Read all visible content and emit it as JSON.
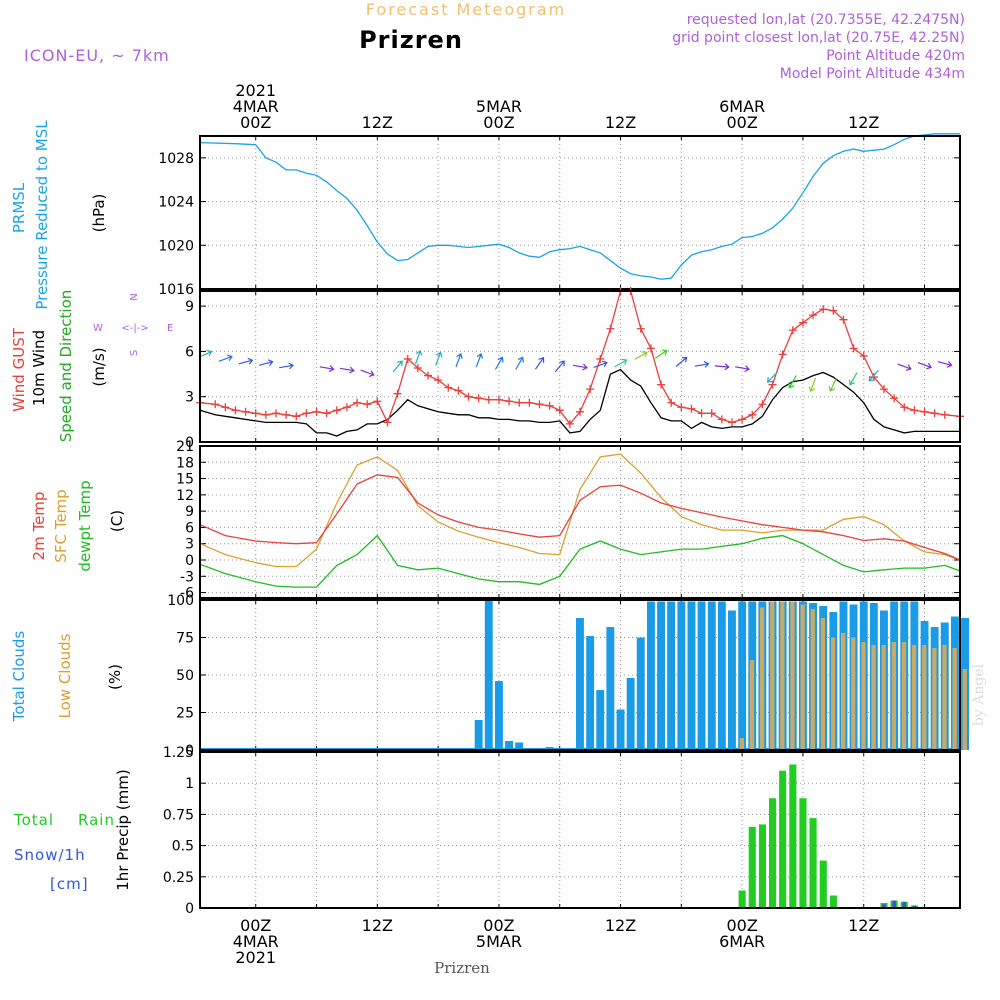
{
  "header": {
    "title": "Prizren",
    "subtitle": "Forecast Meteogram",
    "model": "ICON-EU, ~ 7km",
    "info_lines": [
      "requested lon,lat (20.7355E, 42.2475N)",
      "grid point closest lon,lat (20.75E, 42.25N)",
      "Point Altitude 420m",
      "Model Point Altitude 434m"
    ],
    "bottom_label": "Prizren",
    "watermark": "by Angel"
  },
  "colors": {
    "pressure": "#1aa3e8",
    "gust": "#e8403a",
    "wind": "#000000",
    "temp2m": "#e8403a",
    "sfc_temp": "#d9a030",
    "dewpoint": "#22bb22",
    "total_clouds": "#1a9be8",
    "low_clouds": "#c8aa66",
    "rain": "#22cc22",
    "snow": "#3355dd",
    "title_purple": "#b05fd8"
  },
  "time_axis": {
    "top_labels": [
      {
        "h": 0,
        "lines": [
          "2021",
          "4MAR",
          "00Z"
        ]
      },
      {
        "h": 12,
        "lines": [
          "12Z"
        ]
      },
      {
        "h": 24,
        "lines": [
          "5MAR",
          "00Z"
        ]
      },
      {
        "h": 36,
        "lines": [
          "12Z"
        ]
      },
      {
        "h": 48,
        "lines": [
          "6MAR",
          "00Z"
        ]
      },
      {
        "h": 60,
        "lines": [
          "12Z"
        ]
      }
    ],
    "bottom_labels": [
      {
        "h": 0,
        "lines": [
          "00Z",
          "4MAR",
          "2021"
        ]
      },
      {
        "h": 12,
        "lines": [
          "12Z"
        ]
      },
      {
        "h": 24,
        "lines": [
          "00Z",
          "5MAR"
        ]
      },
      {
        "h": 36,
        "lines": [
          "12Z"
        ]
      },
      {
        "h": 48,
        "lines": [
          "00Z",
          "6MAR"
        ]
      },
      {
        "h": 60,
        "lines": [
          "12Z"
        ]
      }
    ]
  },
  "chart_data": [
    {
      "type": "line",
      "name": "pressure",
      "labels": [
        "PRMSL",
        "Pressure Reduced to MSL",
        "(hPa)"
      ],
      "ylim": [
        1016,
        1030
      ],
      "yticks": [
        1016,
        1020,
        1024,
        1028
      ],
      "x_hours": [
        -5.5,
        -2,
        0,
        1,
        2,
        3,
        4,
        5,
        6,
        7,
        8,
        9,
        10,
        11,
        12,
        13,
        14,
        15,
        16,
        17,
        18,
        19,
        20,
        21,
        22,
        23,
        24,
        25,
        26,
        27,
        28,
        29,
        30,
        31,
        32,
        33,
        34,
        35,
        36,
        37,
        38,
        39,
        40,
        41,
        42,
        43,
        44,
        45,
        46,
        47,
        48,
        49,
        50,
        51,
        52,
        53,
        54,
        55,
        56,
        57,
        58,
        59,
        60,
        61,
        62,
        63,
        64,
        65,
        66,
        67,
        69.5
      ],
      "y": [
        1029.4,
        1029.3,
        1029.2,
        1028.0,
        1027.6,
        1026.9,
        1026.9,
        1026.6,
        1026.4,
        1025.8,
        1025.0,
        1024.3,
        1023.2,
        1021.8,
        1020.3,
        1019.2,
        1018.6,
        1018.7,
        1019.3,
        1019.9,
        1020.0,
        1020.0,
        1019.9,
        1019.8,
        1019.9,
        1020.0,
        1020.1,
        1019.8,
        1019.3,
        1019.0,
        1018.9,
        1019.4,
        1019.6,
        1019.7,
        1019.9,
        1019.6,
        1019.3,
        1018.6,
        1017.9,
        1017.4,
        1017.2,
        1017.1,
        1016.9,
        1017.0,
        1018.2,
        1019.1,
        1019.4,
        1019.6,
        1019.9,
        1020.1,
        1020.7,
        1020.8,
        1021.1,
        1021.6,
        1022.4,
        1023.4,
        1024.8,
        1026.3,
        1027.5,
        1028.2,
        1028.6,
        1028.8,
        1028.6,
        1028.7,
        1028.8,
        1029.2,
        1029.7,
        1030.0,
        1030.1,
        1030.2,
        1030.2
      ]
    },
    {
      "type": "line",
      "name": "wind",
      "labels": [
        "Wind GUST",
        "10m Wind",
        "Speed and Direction",
        "(m/s)"
      ],
      "compass": [
        "N",
        "W",
        "E",
        "S"
      ],
      "ylim": [
        0,
        10
      ],
      "yticks": [
        0,
        3,
        6,
        9
      ],
      "x_hours": [
        -5.5,
        -4,
        -3,
        -2,
        -1,
        0,
        1,
        2,
        3,
        4,
        5,
        6,
        7,
        8,
        9,
        10,
        11,
        12,
        13,
        14,
        15,
        16,
        17,
        18,
        19,
        20,
        21,
        22,
        23,
        24,
        25,
        26,
        27,
        28,
        29,
        30,
        31,
        32,
        33,
        34,
        35,
        36,
        37,
        38,
        39,
        40,
        41,
        42,
        43,
        44,
        45,
        46,
        47,
        48,
        49,
        50,
        51,
        52,
        53,
        54,
        55,
        56,
        57,
        58,
        59,
        60,
        61,
        62,
        63,
        64,
        65,
        66,
        67,
        68,
        69.5
      ],
      "gust": [
        2.6,
        2.5,
        2.3,
        2.1,
        2.0,
        1.9,
        1.8,
        1.9,
        1.8,
        1.7,
        1.9,
        2.0,
        1.9,
        2.1,
        2.3,
        2.6,
        2.5,
        2.7,
        1.3,
        3.2,
        5.5,
        4.9,
        4.4,
        4.1,
        3.6,
        3.4,
        3.0,
        2.9,
        2.8,
        2.8,
        2.7,
        2.6,
        2.6,
        2.5,
        2.4,
        2.1,
        1.2,
        2.0,
        3.5,
        5.5,
        7.5,
        10.0,
        10.0,
        7.5,
        6.2,
        3.8,
        2.6,
        2.3,
        2.2,
        1.9,
        1.9,
        1.5,
        1.3,
        1.5,
        1.8,
        2.5,
        3.8,
        5.8,
        7.4,
        7.9,
        8.4,
        8.8,
        8.7,
        8.1,
        6.2,
        5.7,
        4.3,
        3.5,
        2.9,
        2.3,
        2.1,
        2.0,
        1.9,
        1.8,
        1.7
      ],
      "wind": [
        2.1,
        1.8,
        1.7,
        1.6,
        1.5,
        1.4,
        1.3,
        1.3,
        1.3,
        1.3,
        1.2,
        0.6,
        0.6,
        0.4,
        0.7,
        0.8,
        1.2,
        1.2,
        1.5,
        2.1,
        2.8,
        2.4,
        2.2,
        2.0,
        1.9,
        1.8,
        1.8,
        1.6,
        1.6,
        1.5,
        1.5,
        1.4,
        1.4,
        1.3,
        1.3,
        1.4,
        0.6,
        0.7,
        1.5,
        2.1,
        4.5,
        4.8,
        4.1,
        3.7,
        2.6,
        1.6,
        1.4,
        1.4,
        0.9,
        1.3,
        1.0,
        0.9,
        1.0,
        1.0,
        1.2,
        1.7,
        2.8,
        3.6,
        4.0,
        4.1,
        4.4,
        4.6,
        4.3,
        3.8,
        3.3,
        2.6,
        1.5,
        1.0,
        0.8,
        0.6,
        0.7,
        0.7,
        0.7,
        0.7,
        0.7
      ]
    },
    {
      "type": "line",
      "name": "temperature",
      "labels": [
        "2m Temp",
        "SFC Temp",
        "dewpt Temp",
        "(C)"
      ],
      "ylim": [
        -7,
        21
      ],
      "yticks": [
        -6,
        -3,
        0,
        3,
        6,
        9,
        12,
        15,
        18,
        21
      ],
      "x_hours": [
        -5.5,
        -3,
        0,
        2,
        4,
        6,
        8,
        10,
        12,
        14,
        16,
        18,
        20,
        22,
        24,
        26,
        28,
        30,
        32,
        34,
        36,
        38,
        40,
        42,
        44,
        46,
        48,
        50,
        52,
        54,
        56,
        58,
        60,
        62,
        64,
        66,
        68,
        69.5
      ],
      "temp2m": [
        6.5,
        4.5,
        3.5,
        3.2,
        3.0,
        3.2,
        8.5,
        14.0,
        15.7,
        15.2,
        10.5,
        8.3,
        7.0,
        6.0,
        5.5,
        4.8,
        4.2,
        4.5,
        11.0,
        13.5,
        13.8,
        12.3,
        10.5,
        9.5,
        8.7,
        7.9,
        7.2,
        6.5,
        6.0,
        5.5,
        5.2,
        4.5,
        3.6,
        3.9,
        3.5,
        2.3,
        1.2,
        0.0
      ],
      "sfc_temp": [
        3.0,
        1.0,
        -0.5,
        -1.2,
        -1.2,
        2.0,
        10.5,
        17.5,
        19.0,
        16.5,
        10.0,
        7.0,
        5.3,
        4.2,
        3.2,
        2.3,
        1.2,
        1.0,
        13.0,
        19.0,
        19.5,
        16.0,
        11.5,
        8.0,
        6.5,
        5.5,
        5.5,
        5.0,
        5.5,
        5.5,
        5.5,
        7.5,
        8.0,
        6.5,
        3.5,
        1.5,
        1.0,
        0.0
      ],
      "dewpoint": [
        -0.8,
        -2.5,
        -4.0,
        -4.8,
        -5.0,
        -5.0,
        -1.0,
        1.0,
        4.5,
        -1.0,
        -1.8,
        -1.5,
        -2.5,
        -3.5,
        -4.0,
        -4.0,
        -4.5,
        -3.0,
        2.0,
        3.5,
        2.0,
        1.0,
        1.5,
        2.0,
        2.0,
        2.5,
        3.0,
        4.0,
        4.5,
        3.0,
        1.0,
        -1.0,
        -2.2,
        -1.8,
        -1.5,
        -1.5,
        -1.0,
        -2.0
      ]
    },
    {
      "type": "bar",
      "name": "clouds",
      "labels": [
        "Total Clouds",
        "Low Clouds",
        "(%)"
      ],
      "ylim": [
        0,
        100
      ],
      "yticks": [
        0,
        25,
        50,
        75,
        100
      ],
      "x_hours": [
        20,
        21,
        22,
        23,
        24,
        25,
        26,
        27,
        28,
        29,
        30,
        31,
        32,
        33,
        34,
        35,
        36,
        37,
        38,
        39,
        40,
        41,
        42,
        43,
        44,
        45,
        46,
        47,
        48,
        49,
        50,
        51,
        52,
        53,
        54,
        55,
        56,
        57,
        58,
        59,
        60,
        61,
        62,
        63,
        64,
        65,
        66,
        67,
        68,
        69,
        70
      ],
      "total": [
        0,
        0,
        20,
        100,
        46,
        6,
        5,
        0,
        0,
        2,
        1,
        0,
        88,
        76,
        40,
        82,
        27,
        48,
        75,
        99,
        99,
        99,
        99,
        99,
        99,
        99,
        99,
        93,
        99,
        99,
        99,
        99,
        99,
        99,
        99,
        98,
        96,
        92,
        99,
        97,
        99,
        98,
        93,
        99,
        99,
        99,
        86,
        82,
        85,
        89,
        88
      ],
      "low": [
        0,
        0,
        0,
        0,
        0,
        0,
        0,
        0,
        0,
        0,
        0,
        0,
        0,
        0,
        0,
        0,
        0,
        0,
        0,
        0,
        0,
        0,
        0,
        0,
        0,
        0,
        0,
        0,
        8,
        60,
        95,
        99,
        99,
        99,
        97,
        94,
        88,
        75,
        78,
        75,
        72,
        70,
        70,
        72,
        72,
        70,
        70,
        68,
        70,
        68,
        54
      ]
    },
    {
      "type": "bar",
      "name": "precipitation",
      "labels": [
        "Total",
        "Rain",
        "Snow/1h",
        "[cm]",
        "1hr Precip (mm)"
      ],
      "ylim": [
        0,
        1.25
      ],
      "yticks": [
        0,
        0.25,
        0.5,
        0.75,
        1,
        1.25
      ],
      "x_hours": [
        48,
        49,
        50,
        51,
        52,
        53,
        54,
        55,
        56,
        57,
        58,
        59,
        60,
        61,
        62,
        63,
        64,
        65,
        66
      ],
      "rain": [
        0.14,
        0.65,
        0.67,
        0.88,
        1.1,
        1.15,
        0.88,
        0.72,
        0.38,
        0.1,
        0,
        0,
        0,
        0,
        0.04,
        0.06,
        0.05,
        0.02,
        0
      ],
      "snow": [
        0,
        0,
        0,
        0,
        0,
        0,
        0,
        0,
        0,
        0,
        0,
        0,
        0,
        0,
        0.03,
        0.06,
        0.05,
        0.02,
        0
      ]
    }
  ]
}
